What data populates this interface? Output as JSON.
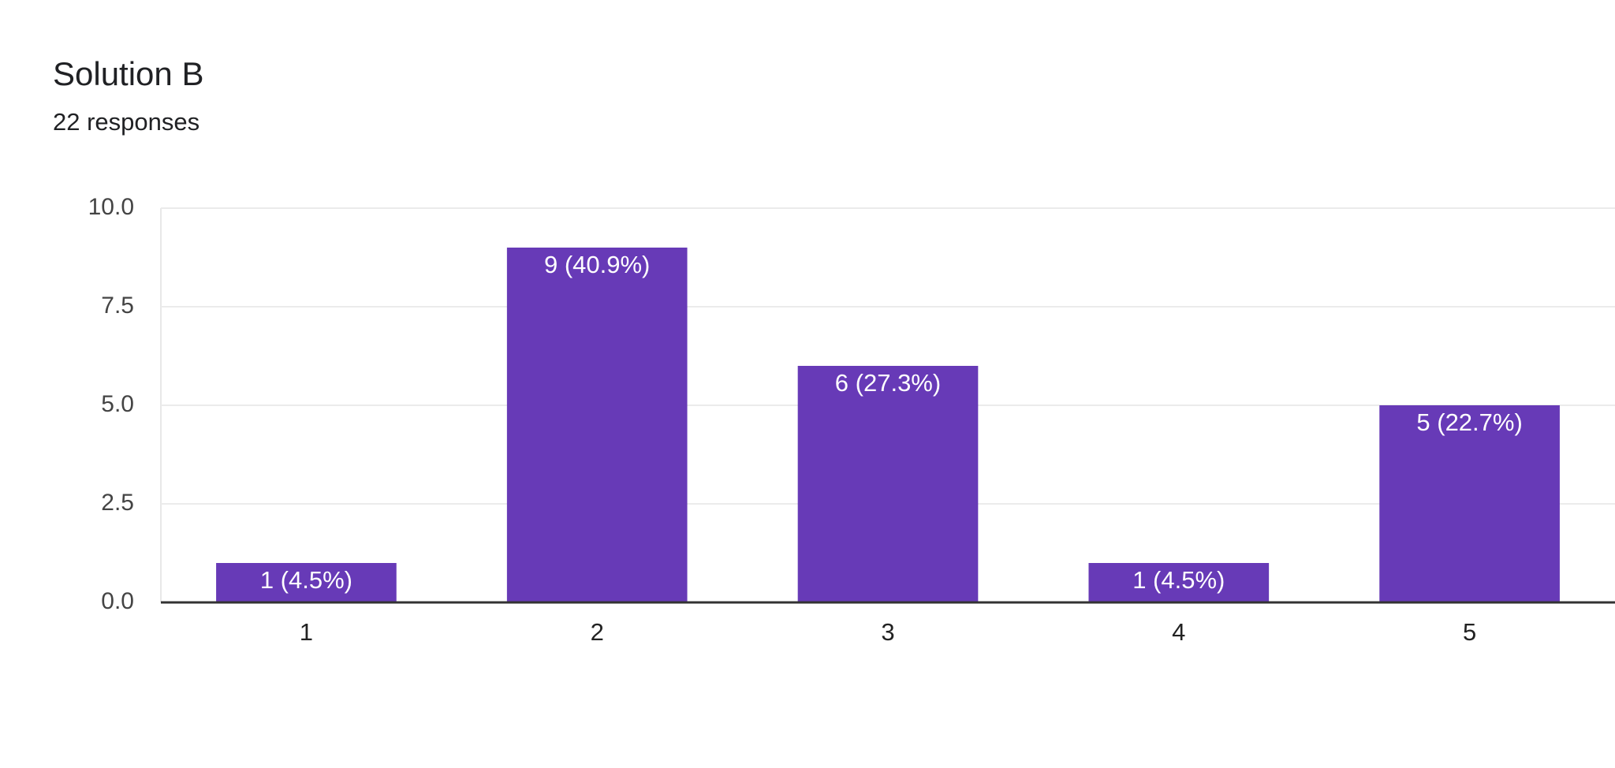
{
  "chart_data": {
    "type": "bar",
    "title": "Solution B",
    "subtitle": "22 responses",
    "categories": [
      "1",
      "2",
      "3",
      "4",
      "5"
    ],
    "values": [
      1,
      9,
      6,
      1,
      5
    ],
    "value_labels": [
      "1 (4.5%)",
      "9 (40.9%)",
      "6 (27.3%)",
      "1 (4.5%)",
      "5 (22.7%)"
    ],
    "color": "#673ab7",
    "ylim": [
      0,
      10
    ],
    "yticks": [
      {
        "value": 0,
        "label": "0.0"
      },
      2.5,
      {
        "value": 5,
        "label": "5.0"
      },
      7.5,
      {
        "value": 10,
        "label": "10.0"
      }
    ],
    "grid": true
  }
}
